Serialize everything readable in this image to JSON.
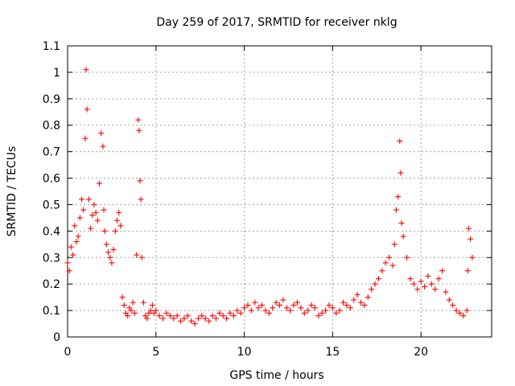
{
  "chart_data": {
    "type": "scatter",
    "title": "Day 259 of 2017, SRMTID for receiver nklg",
    "xlabel": "GPS time / hours",
    "ylabel": "SRMTID / TECUs",
    "xlim": [
      0,
      24
    ],
    "ylim": [
      0,
      1.1
    ],
    "xticks": [
      0,
      5,
      10,
      15,
      20
    ],
    "xtick_labels": [
      "0",
      "5",
      "10",
      "15",
      "20"
    ],
    "yticks": [
      0,
      0.1,
      0.2,
      0.3,
      0.4,
      0.5,
      0.6,
      0.7,
      0.8,
      0.9,
      1.0,
      1.1
    ],
    "ytick_labels": [
      "0",
      "0.1",
      "0.2",
      "0.3",
      "0.4",
      "0.5",
      "0.6",
      "0.7",
      "0.8",
      "0.9",
      "1",
      "1.1"
    ],
    "grid": true,
    "marker": "+",
    "color": "#ff0000",
    "series": [
      {
        "name": "nklg",
        "x": [
          0.0,
          0.1,
          0.2,
          0.3,
          0.4,
          0.5,
          0.6,
          0.7,
          0.8,
          0.9,
          1.0,
          1.05,
          1.1,
          1.2,
          1.3,
          1.4,
          1.5,
          1.6,
          1.7,
          1.8,
          1.9,
          2.0,
          2.05,
          2.1,
          2.2,
          2.3,
          2.4,
          2.5,
          2.6,
          2.7,
          2.8,
          2.9,
          3.0,
          3.1,
          3.2,
          3.3,
          3.4,
          3.5,
          3.6,
          3.7,
          3.8,
          3.9,
          4.0,
          4.05,
          4.1,
          4.15,
          4.2,
          4.3,
          4.4,
          4.5,
          4.6,
          4.7,
          4.8,
          4.9,
          5.0,
          5.2,
          5.4,
          5.6,
          5.8,
          6.0,
          6.2,
          6.4,
          6.6,
          6.8,
          7.0,
          7.2,
          7.4,
          7.6,
          7.8,
          8.0,
          8.2,
          8.4,
          8.6,
          8.8,
          9.0,
          9.2,
          9.4,
          9.6,
          9.8,
          10.0,
          10.2,
          10.4,
          10.6,
          10.8,
          11.0,
          11.2,
          11.4,
          11.6,
          11.8,
          12.0,
          12.2,
          12.4,
          12.6,
          12.8,
          13.0,
          13.2,
          13.4,
          13.6,
          13.8,
          14.0,
          14.2,
          14.4,
          14.6,
          14.8,
          15.0,
          15.2,
          15.4,
          15.6,
          15.8,
          16.0,
          16.2,
          16.4,
          16.6,
          16.8,
          17.0,
          17.2,
          17.4,
          17.6,
          17.8,
          18.0,
          18.2,
          18.4,
          18.5,
          18.6,
          18.7,
          18.8,
          18.85,
          18.9,
          19.0,
          19.2,
          19.4,
          19.6,
          19.8,
          20.0,
          20.2,
          20.4,
          20.6,
          20.8,
          21.0,
          21.2,
          21.4,
          21.6,
          21.8,
          22.0,
          22.2,
          22.4,
          22.6,
          22.65,
          22.7,
          22.8,
          22.9
        ],
        "y": [
          0.28,
          0.25,
          0.34,
          0.31,
          0.42,
          0.36,
          0.38,
          0.45,
          0.52,
          0.48,
          0.75,
          1.01,
          0.86,
          0.52,
          0.41,
          0.46,
          0.5,
          0.47,
          0.44,
          0.58,
          0.77,
          0.72,
          0.48,
          0.4,
          0.35,
          0.32,
          0.3,
          0.28,
          0.33,
          0.4,
          0.44,
          0.47,
          0.42,
          0.15,
          0.12,
          0.09,
          0.08,
          0.11,
          0.1,
          0.13,
          0.09,
          0.31,
          0.82,
          0.78,
          0.59,
          0.52,
          0.3,
          0.13,
          0.08,
          0.07,
          0.09,
          0.1,
          0.12,
          0.09,
          0.1,
          0.08,
          0.07,
          0.09,
          0.08,
          0.07,
          0.08,
          0.06,
          0.07,
          0.08,
          0.06,
          0.05,
          0.07,
          0.08,
          0.07,
          0.06,
          0.08,
          0.07,
          0.09,
          0.08,
          0.07,
          0.09,
          0.08,
          0.1,
          0.09,
          0.11,
          0.12,
          0.1,
          0.13,
          0.11,
          0.12,
          0.1,
          0.09,
          0.11,
          0.13,
          0.12,
          0.14,
          0.11,
          0.1,
          0.12,
          0.13,
          0.11,
          0.09,
          0.1,
          0.12,
          0.11,
          0.08,
          0.09,
          0.1,
          0.12,
          0.11,
          0.09,
          0.1,
          0.13,
          0.12,
          0.11,
          0.14,
          0.16,
          0.13,
          0.12,
          0.15,
          0.18,
          0.2,
          0.22,
          0.25,
          0.28,
          0.3,
          0.27,
          0.35,
          0.48,
          0.53,
          0.74,
          0.62,
          0.43,
          0.38,
          0.3,
          0.22,
          0.2,
          0.18,
          0.21,
          0.19,
          0.23,
          0.2,
          0.18,
          0.22,
          0.25,
          0.17,
          0.14,
          0.12,
          0.1,
          0.09,
          0.08,
          0.1,
          0.25,
          0.41,
          0.37,
          0.3
        ]
      }
    ]
  }
}
